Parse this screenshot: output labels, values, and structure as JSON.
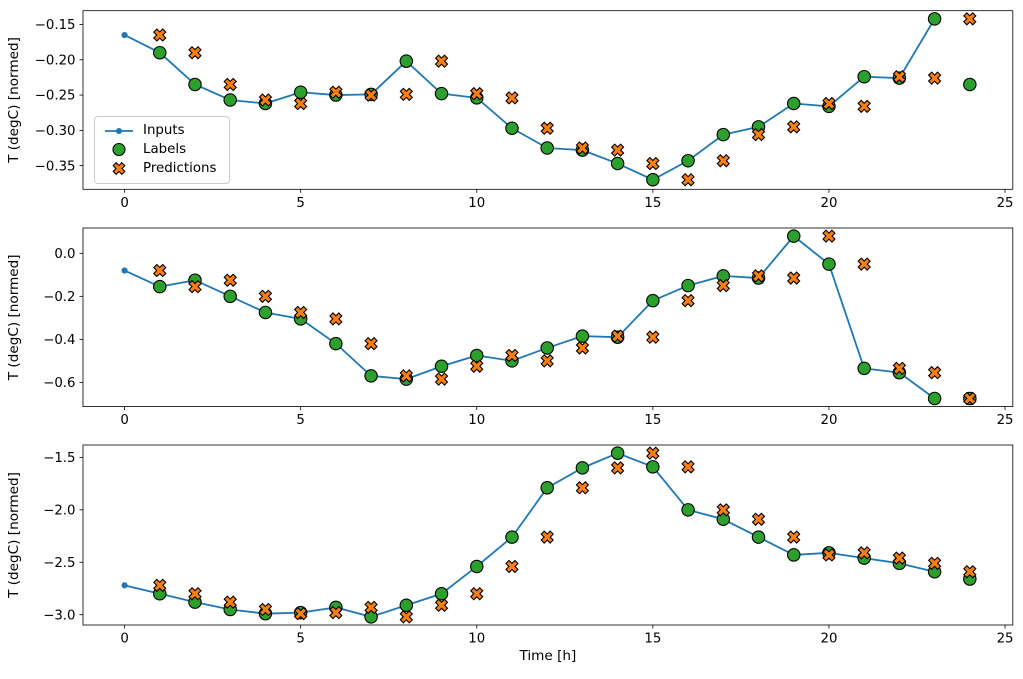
{
  "figure": {
    "background_color": "#ffffff",
    "text_color": "#000000",
    "spine_color": "#000000",
    "xlabel": "Time [h]",
    "ylabel": "T (degC) [normed]"
  },
  "legend": {
    "location": "center-left of first subplot",
    "items": [
      {
        "label": "Inputs",
        "marker": "line-with-dot",
        "color": "#1f77b4",
        "edge_color": "#1f77b4"
      },
      {
        "label": "Labels",
        "marker": "circle",
        "color": "#2ca02c",
        "edge_color": "#000000"
      },
      {
        "label": "Predictions",
        "marker": "thick-x",
        "color": "#ff7f0e",
        "edge_color": "#000000"
      }
    ]
  },
  "chart_data": [
    {
      "type": "line",
      "ylabel": "T (degC) [normed]",
      "xlabel": "",
      "xlim": [
        -1.18,
        25.22
      ],
      "ylim": [
        -0.3835,
        -0.1305
      ],
      "xtick_values": [
        0,
        5,
        10,
        15,
        20,
        25
      ],
      "xtick_labels": [
        "0",
        "5",
        "10",
        "15",
        "20",
        "25"
      ],
      "ytick_values": [
        -0.15,
        -0.2,
        -0.25,
        -0.3,
        -0.35
      ],
      "ytick_labels": [
        "−0.15",
        "−0.20",
        "−0.25",
        "−0.30",
        "−0.35"
      ],
      "series": [
        {
          "name": "Inputs",
          "type": "line+marker",
          "color": "#1f77b4",
          "x": [
            0,
            1,
            2,
            3,
            4,
            5,
            6,
            7,
            8,
            9,
            10,
            11,
            12,
            13,
            14,
            15,
            16,
            17,
            18,
            19,
            20,
            21,
            22,
            23
          ],
          "y": [
            -0.165,
            -0.19,
            -0.235,
            -0.257,
            -0.262,
            -0.246,
            -0.25,
            -0.249,
            -0.202,
            -0.248,
            -0.254,
            -0.297,
            -0.325,
            -0.328,
            -0.347,
            -0.37,
            -0.343,
            -0.306,
            -0.295,
            -0.262,
            -0.266,
            -0.224,
            -0.226,
            -0.142
          ]
        },
        {
          "name": "Labels",
          "type": "scatter-circle",
          "color": "#2ca02c",
          "edge_color": "#000000",
          "x": [
            1,
            2,
            3,
            4,
            5,
            6,
            7,
            8,
            9,
            10,
            11,
            12,
            13,
            14,
            15,
            16,
            17,
            18,
            19,
            20,
            21,
            22,
            23,
            24
          ],
          "y": [
            -0.19,
            -0.235,
            -0.257,
            -0.262,
            -0.246,
            -0.25,
            -0.249,
            -0.202,
            -0.248,
            -0.254,
            -0.297,
            -0.325,
            -0.328,
            -0.347,
            -0.37,
            -0.343,
            -0.306,
            -0.295,
            -0.262,
            -0.266,
            -0.224,
            -0.226,
            -0.142,
            -0.235
          ]
        },
        {
          "name": "Predictions",
          "type": "scatter-x",
          "color": "#ff7f0e",
          "edge_color": "#000000",
          "x": [
            1,
            2,
            3,
            4,
            5,
            6,
            7,
            8,
            9,
            10,
            11,
            12,
            13,
            14,
            15,
            16,
            17,
            18,
            19,
            20,
            21,
            22,
            23,
            24
          ],
          "y": [
            -0.165,
            -0.19,
            -0.235,
            -0.257,
            -0.262,
            -0.246,
            -0.25,
            -0.249,
            -0.202,
            -0.248,
            -0.254,
            -0.297,
            -0.325,
            -0.328,
            -0.347,
            -0.37,
            -0.343,
            -0.306,
            -0.295,
            -0.262,
            -0.266,
            -0.224,
            -0.226,
            -0.142
          ]
        }
      ]
    },
    {
      "type": "line",
      "ylabel": "T (degC) [normed]",
      "xlabel": "",
      "xlim": [
        -1.18,
        25.22
      ],
      "ylim": [
        -0.7128,
        0.1178
      ],
      "xtick_values": [
        0,
        5,
        10,
        15,
        20,
        25
      ],
      "xtick_labels": [
        "0",
        "5",
        "10",
        "15",
        "20",
        "25"
      ],
      "ytick_values": [
        0.0,
        -0.2,
        -0.4,
        -0.6
      ],
      "ytick_labels": [
        "0.0",
        "−0.2",
        "−0.4",
        "−0.6"
      ],
      "series": [
        {
          "name": "Inputs",
          "type": "line+marker",
          "color": "#1f77b4",
          "x": [
            0,
            1,
            2,
            3,
            4,
            5,
            6,
            7,
            8,
            9,
            10,
            11,
            12,
            13,
            14,
            15,
            16,
            17,
            18,
            19,
            20,
            21,
            22,
            23
          ],
          "y": [
            -0.08,
            -0.155,
            -0.125,
            -0.2,
            -0.275,
            -0.305,
            -0.42,
            -0.57,
            -0.585,
            -0.525,
            -0.475,
            -0.5,
            -0.44,
            -0.385,
            -0.39,
            -0.22,
            -0.15,
            -0.105,
            -0.115,
            0.08,
            -0.05,
            -0.535,
            -0.555,
            -0.675
          ]
        },
        {
          "name": "Labels",
          "type": "scatter-circle",
          "color": "#2ca02c",
          "edge_color": "#000000",
          "x": [
            1,
            2,
            3,
            4,
            5,
            6,
            7,
            8,
            9,
            10,
            11,
            12,
            13,
            14,
            15,
            16,
            17,
            18,
            19,
            20,
            21,
            22,
            23,
            24
          ],
          "y": [
            -0.155,
            -0.125,
            -0.2,
            -0.275,
            -0.305,
            -0.42,
            -0.57,
            -0.585,
            -0.525,
            -0.475,
            -0.5,
            -0.44,
            -0.385,
            -0.39,
            -0.22,
            -0.15,
            -0.105,
            -0.115,
            0.08,
            -0.05,
            -0.535,
            -0.555,
            -0.675,
            -0.675
          ]
        },
        {
          "name": "Predictions",
          "type": "scatter-x",
          "color": "#ff7f0e",
          "edge_color": "#000000",
          "x": [
            1,
            2,
            3,
            4,
            5,
            6,
            7,
            8,
            9,
            10,
            11,
            12,
            13,
            14,
            15,
            16,
            17,
            18,
            19,
            20,
            21,
            22,
            23,
            24
          ],
          "y": [
            -0.08,
            -0.155,
            -0.125,
            -0.2,
            -0.275,
            -0.305,
            -0.42,
            -0.57,
            -0.585,
            -0.525,
            -0.475,
            -0.5,
            -0.44,
            -0.385,
            -0.39,
            -0.22,
            -0.15,
            -0.105,
            -0.115,
            0.08,
            -0.05,
            -0.535,
            -0.555,
            -0.675
          ]
        }
      ]
    },
    {
      "type": "line",
      "ylabel": "T (degC) [normed]",
      "xlabel": "Time [h]",
      "xlim": [
        -1.18,
        25.22
      ],
      "ylim": [
        -3.098,
        -1.382
      ],
      "xtick_values": [
        0,
        5,
        10,
        15,
        20,
        25
      ],
      "xtick_labels": [
        "0",
        "5",
        "10",
        "15",
        "20",
        "25"
      ],
      "ytick_values": [
        -1.5,
        -2.0,
        -2.5,
        -3.0
      ],
      "ytick_labels": [
        "−1.5",
        "−2.0",
        "−2.5",
        "−3.0"
      ],
      "series": [
        {
          "name": "Inputs",
          "type": "line+marker",
          "color": "#1f77b4",
          "x": [
            0,
            1,
            2,
            3,
            4,
            5,
            6,
            7,
            8,
            9,
            10,
            11,
            12,
            13,
            14,
            15,
            16,
            17,
            18,
            19,
            20,
            21,
            22,
            23
          ],
          "y": [
            -2.72,
            -2.8,
            -2.88,
            -2.95,
            -2.99,
            -2.98,
            -2.93,
            -3.02,
            -2.91,
            -2.8,
            -2.54,
            -2.26,
            -1.79,
            -1.6,
            -1.46,
            -1.59,
            -2.0,
            -2.09,
            -2.26,
            -2.43,
            -2.41,
            -2.46,
            -2.51,
            -2.59
          ]
        },
        {
          "name": "Labels",
          "type": "scatter-circle",
          "color": "#2ca02c",
          "edge_color": "#000000",
          "x": [
            1,
            2,
            3,
            4,
            5,
            6,
            7,
            8,
            9,
            10,
            11,
            12,
            13,
            14,
            15,
            16,
            17,
            18,
            19,
            20,
            21,
            22,
            23,
            24
          ],
          "y": [
            -2.8,
            -2.88,
            -2.95,
            -2.99,
            -2.98,
            -2.93,
            -3.02,
            -2.91,
            -2.8,
            -2.54,
            -2.26,
            -1.79,
            -1.6,
            -1.46,
            -1.59,
            -2.0,
            -2.09,
            -2.26,
            -2.43,
            -2.41,
            -2.46,
            -2.51,
            -2.59,
            -2.66
          ]
        },
        {
          "name": "Predictions",
          "type": "scatter-x",
          "color": "#ff7f0e",
          "edge_color": "#000000",
          "x": [
            1,
            2,
            3,
            4,
            5,
            6,
            7,
            8,
            9,
            10,
            11,
            12,
            13,
            14,
            15,
            16,
            17,
            18,
            19,
            20,
            21,
            22,
            23,
            24
          ],
          "y": [
            -2.72,
            -2.8,
            -2.88,
            -2.95,
            -2.99,
            -2.98,
            -2.93,
            -3.02,
            -2.91,
            -2.8,
            -2.54,
            -2.26,
            -1.79,
            -1.6,
            -1.46,
            -1.59,
            -2.0,
            -2.09,
            -2.26,
            -2.43,
            -2.41,
            -2.46,
            -2.51,
            -2.59
          ]
        }
      ]
    }
  ]
}
